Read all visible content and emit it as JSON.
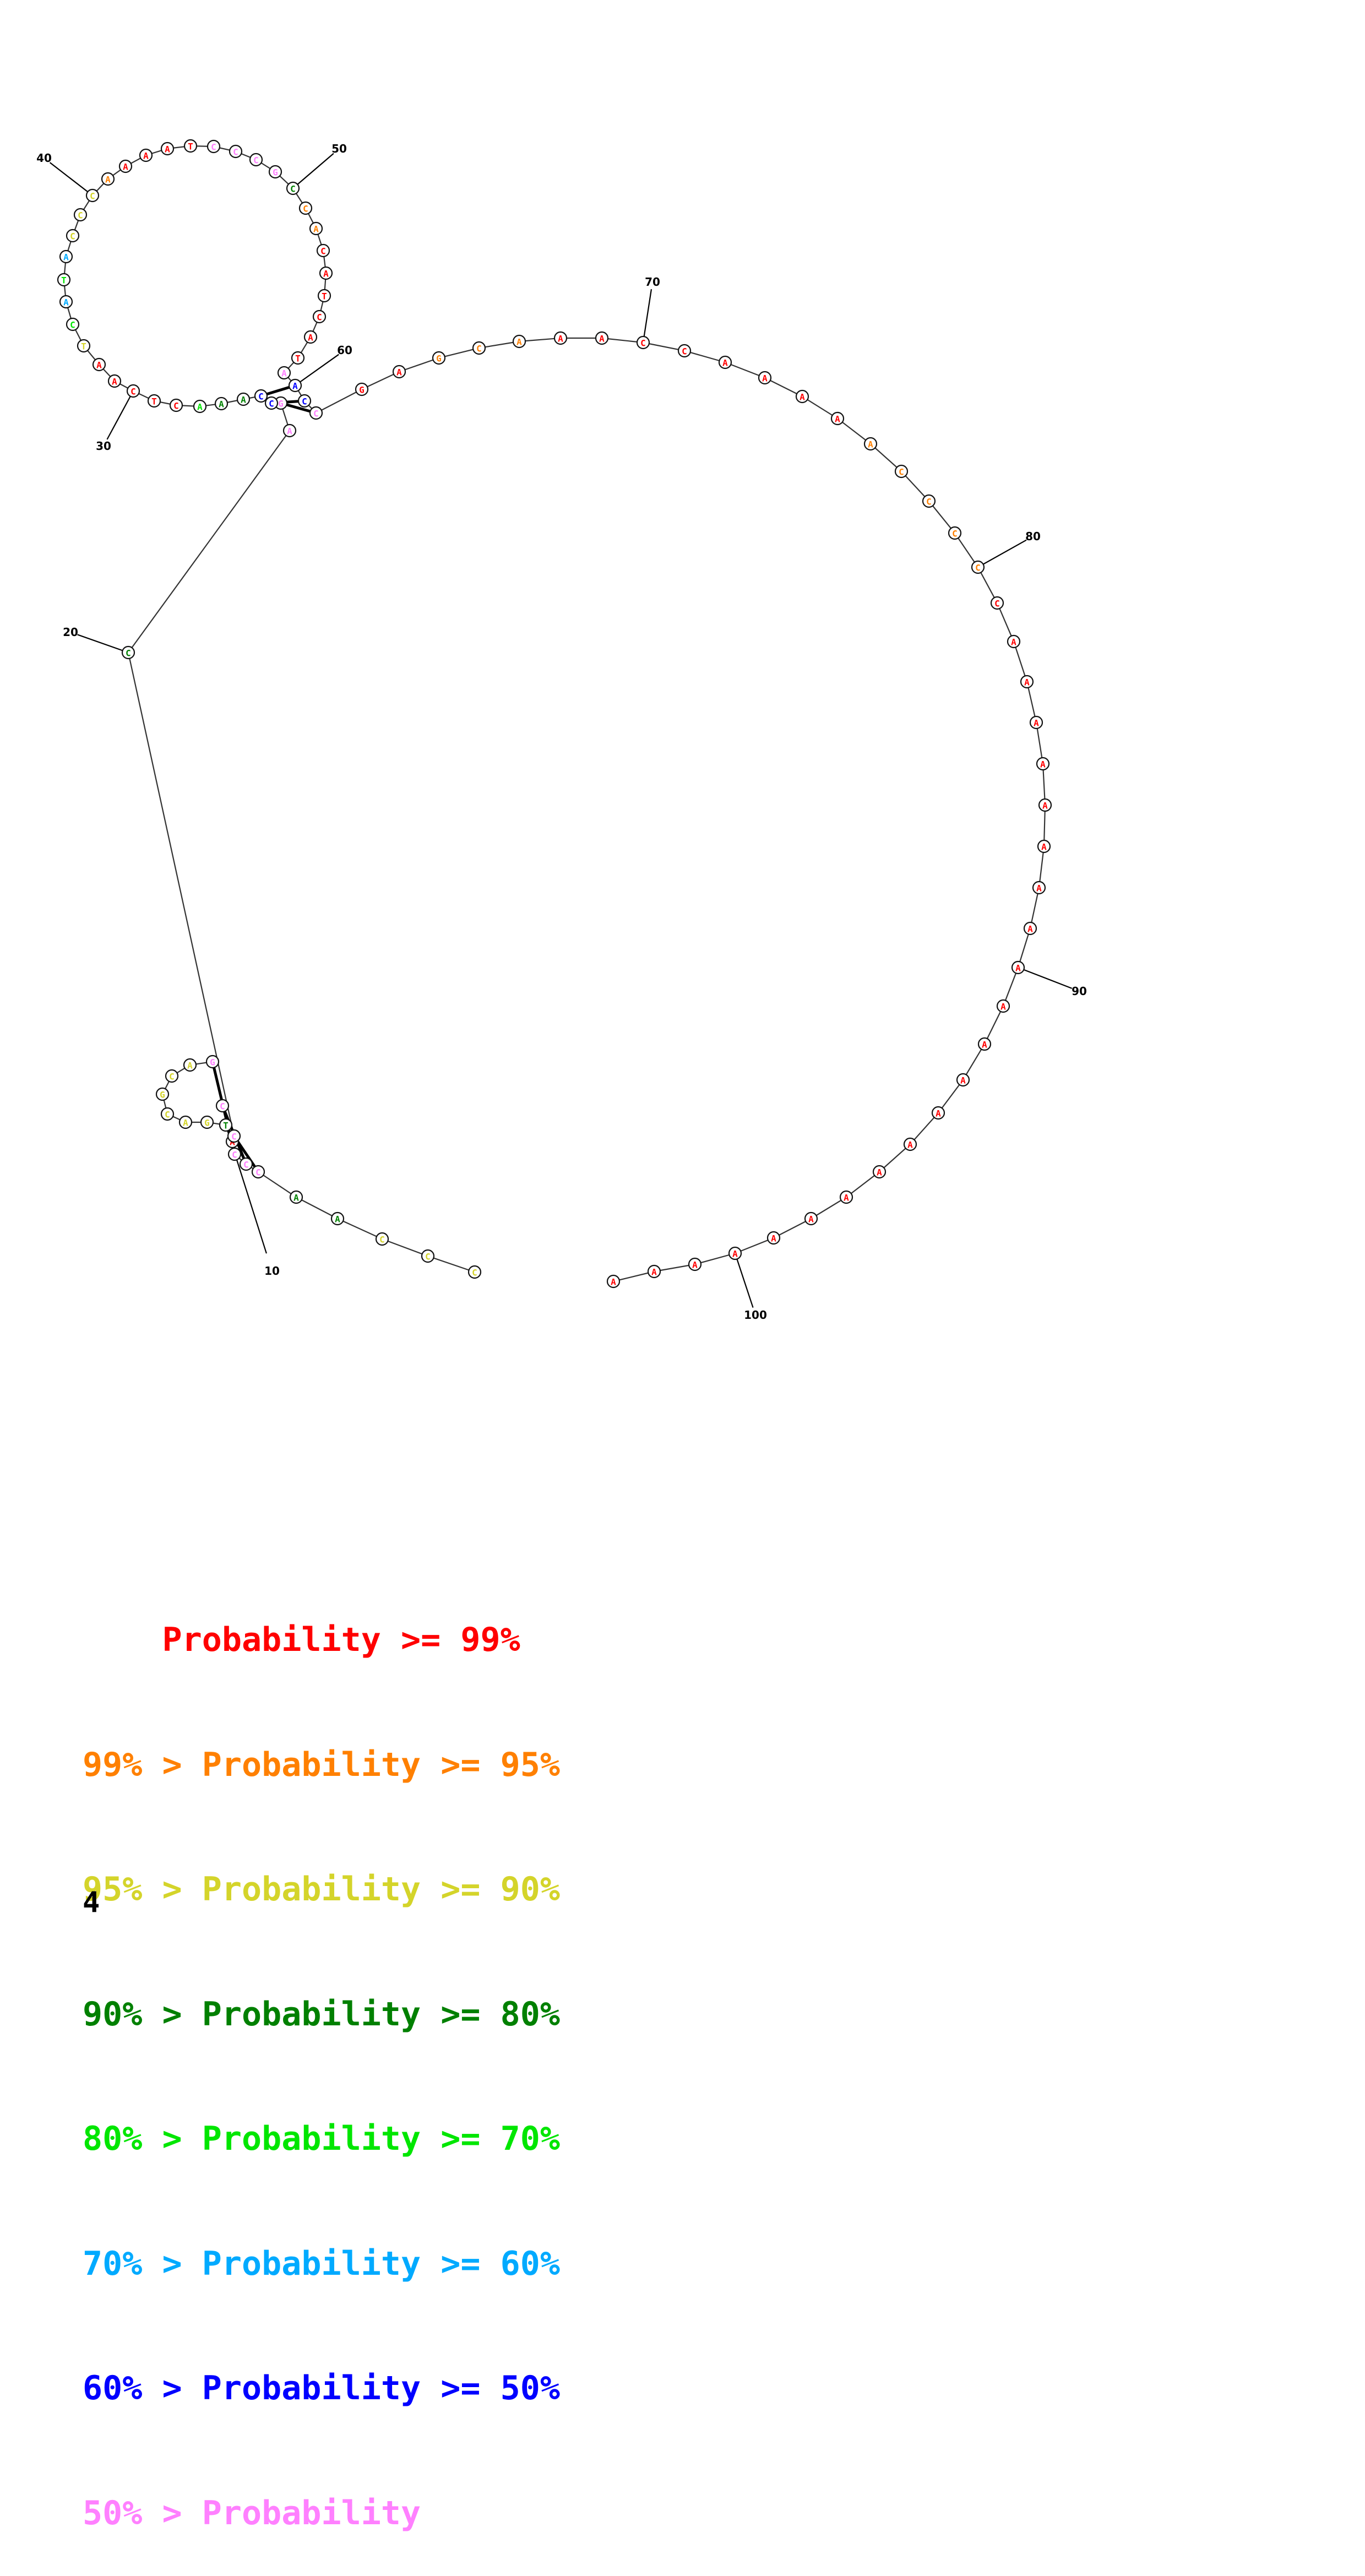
{
  "structure": {
    "sequence": "CCCAACCCATGACGCAGCCCAGCCAAACTCAATCATACCCAAAATCCCGCCACATCATAACCGAGCAAACCAAAAACCCCCAAAAAAAAAAAAAAAAAAAAAA",
    "numbers": [
      {
        "index": 10,
        "label": "10"
      },
      {
        "index": 20,
        "label": "20"
      },
      {
        "index": 30,
        "label": "30"
      },
      {
        "index": 40,
        "label": "40"
      },
      {
        "index": 50,
        "label": "50"
      },
      {
        "index": 60,
        "label": "60"
      },
      {
        "index": 70,
        "label": "70"
      },
      {
        "index": 80,
        "label": "80"
      },
      {
        "index": 90,
        "label": "90"
      },
      {
        "index": 100,
        "label": "100"
      }
    ],
    "colors": {
      "red": "#ff0000",
      "orange": "#ff8000",
      "yellow": "#d4d42a",
      "darkgreen": "#008000",
      "lime": "#00e600",
      "cyan": "#00aaff",
      "blue": "#0000ff",
      "pink": "#ff80ff"
    }
  },
  "legend": [
    {
      "text": "    Probability >= 99%",
      "color": "#ff0000"
    },
    {
      "text": "99% > Probability >= 95%",
      "color": "#ff8000"
    },
    {
      "text": "95% > Probability >= 90%",
      "color": "#d4d42a"
    },
    {
      "text": "90% > Probability >= 80%",
      "color": "#008000"
    },
    {
      "text": "80% > Probability >= 70%",
      "color": "#00e600"
    },
    {
      "text": "70% > Probability >= 60%",
      "color": "#00aaff"
    },
    {
      "text": "60% > Probability >= 50%",
      "color": "#0000ff"
    },
    {
      "text": "50% > Probability",
      "color": "#ff80ff"
    }
  ],
  "page_number": "4"
}
